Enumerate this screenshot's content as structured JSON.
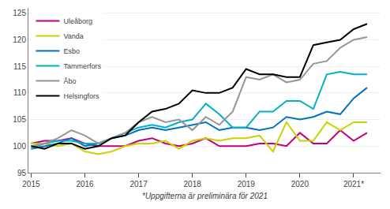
{
  "chart_data": {
    "type": "line",
    "footnote": "*Uppgifterna är preliminära för 2021",
    "x": [
      2015,
      2015.25,
      2015.5,
      2015.75,
      2016,
      2016.25,
      2016.5,
      2016.75,
      2017,
      2017.25,
      2017.5,
      2017.75,
      2018,
      2018.25,
      2018.5,
      2018.75,
      2019,
      2019.25,
      2019.5,
      2019.75,
      2020,
      2020.25,
      2020.5,
      2020.75,
      2021,
      2021.25
    ],
    "xlim": [
      2014.95,
      2021.5
    ],
    "xticks": [
      2015,
      2016,
      2017,
      2018,
      2019,
      2020,
      {
        "value": 2021,
        "label": "2021*"
      }
    ],
    "ylim": [
      95,
      126
    ],
    "yticks": [
      95,
      100,
      105,
      110,
      115,
      120,
      125
    ],
    "grid": true,
    "legend": "upper left",
    "series": [
      {
        "name": "Uleåborg",
        "color": "#c0007a",
        "values": [
          100.5,
          101.0,
          101.0,
          101.5,
          100.5,
          100.0,
          100.0,
          100.0,
          101.0,
          101.5,
          100.5,
          100.0,
          100.5,
          101.5,
          100.0,
          100.0,
          100.0,
          100.5,
          100.5,
          100.0,
          102.5,
          100.5,
          100.5,
          103.0,
          101.0,
          102.5
        ]
      },
      {
        "name": "Vanda",
        "color": "#c8d400",
        "values": [
          100.5,
          100.5,
          100.0,
          100.5,
          99.0,
          98.5,
          99.0,
          100.0,
          100.5,
          100.5,
          101.0,
          99.5,
          101.0,
          101.5,
          101.0,
          101.5,
          101.5,
          102.0,
          99.0,
          104.5,
          101.0,
          101.0,
          104.5,
          103.0,
          104.5,
          104.5
        ]
      },
      {
        "name": "Esbo",
        "color": "#0070c0",
        "values": [
          99.5,
          100.0,
          100.5,
          101.5,
          100.0,
          100.5,
          101.5,
          102.0,
          103.0,
          103.5,
          103.0,
          103.5,
          104.0,
          104.5,
          103.0,
          103.5,
          103.5,
          103.0,
          103.5,
          105.5,
          105.0,
          105.5,
          106.5,
          106.0,
          109.0,
          111.0
        ]
      },
      {
        "name": "Tammerfors",
        "color": "#00b0c8",
        "values": [
          99.5,
          100.5,
          101.0,
          101.0,
          100.5,
          100.5,
          101.5,
          102.5,
          103.5,
          104.0,
          103.5,
          104.5,
          105.0,
          108.0,
          106.0,
          103.5,
          103.5,
          106.5,
          106.5,
          108.5,
          108.5,
          107.0,
          113.5,
          114.0,
          113.5,
          113.5
        ]
      },
      {
        "name": "Åbo",
        "color": "#969696",
        "values": [
          100.0,
          100.5,
          101.5,
          103.0,
          102.0,
          100.5,
          101.5,
          102.5,
          104.5,
          105.5,
          104.5,
          105.0,
          103.0,
          105.5,
          104.0,
          106.5,
          113.0,
          112.5,
          113.5,
          112.0,
          112.5,
          115.5,
          116.0,
          118.5,
          120.0,
          120.5
        ]
      },
      {
        "name": "Helsingfors",
        "color": "#000000",
        "values": [
          100.0,
          99.5,
          100.5,
          100.5,
          99.5,
          100.0,
          101.5,
          102.0,
          104.5,
          106.5,
          107.0,
          108.0,
          110.5,
          110.0,
          110.0,
          111.0,
          114.5,
          113.5,
          113.5,
          113.0,
          113.0,
          119.0,
          119.5,
          120.0,
          122.0,
          123.0
        ]
      }
    ]
  }
}
